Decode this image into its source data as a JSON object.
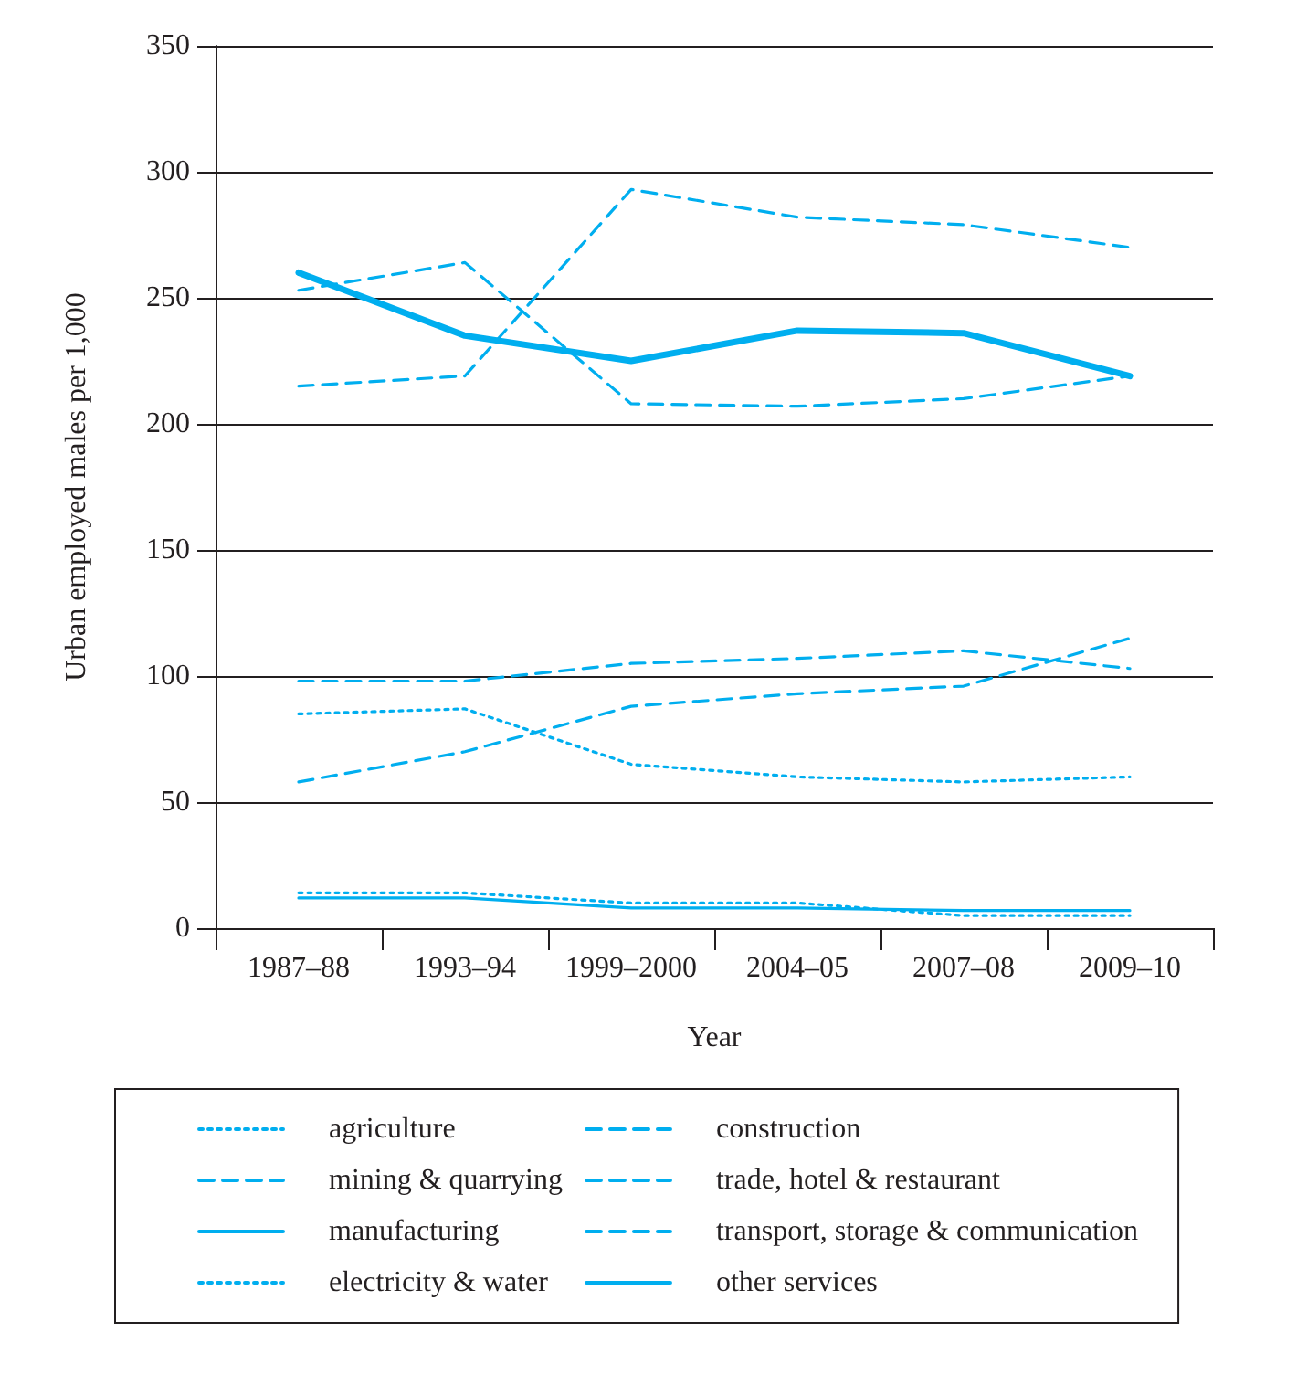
{
  "chart_data": {
    "type": "line",
    "xlabel": "Year",
    "ylabel": "Urban employed males per 1,000",
    "categories": [
      "1987–88",
      "1993–94",
      "1999–2000",
      "2004–05",
      "2007–08",
      "2009–10"
    ],
    "ylim": [
      0,
      350
    ],
    "yticks": [
      0,
      50,
      100,
      150,
      200,
      250,
      300,
      350
    ],
    "grid": "y",
    "legend": "bottom",
    "marker": "none",
    "series": [
      {
        "name": "agriculture",
        "color": "#00aeef",
        "line_style": "dotted",
        "values": [
          85,
          87,
          65,
          60,
          58,
          60
        ]
      },
      {
        "name": "mining & quarrying",
        "color": "#00aeef",
        "line_style": "dashed",
        "values": [
          253,
          264,
          208,
          207,
          210,
          219
        ]
      },
      {
        "name": "manufacturing",
        "color": "#00aeef",
        "line_style": "solid",
        "values": [
          260,
          235,
          225,
          237,
          236,
          219
        ]
      },
      {
        "name": "electricity & water",
        "color": "#00aeef",
        "line_style": "dotted",
        "values": [
          14,
          14,
          10,
          10,
          5,
          5
        ]
      },
      {
        "name": "construction",
        "color": "#00aeef",
        "line_style": "dashed",
        "values": [
          58,
          70,
          88,
          93,
          96,
          115
        ]
      },
      {
        "name": "trade, hotel & restaurant",
        "color": "#00aeef",
        "line_style": "dashed",
        "values": [
          215,
          219,
          293,
          282,
          279,
          270
        ]
      },
      {
        "name": "transport, storage & communication",
        "color": "#00aeef",
        "line_style": "dashed",
        "values": [
          98,
          98,
          105,
          107,
          110,
          103
        ]
      },
      {
        "name": "other services",
        "color": "#00aeef",
        "line_style": "solid",
        "values": [
          12,
          12,
          8,
          8,
          7,
          7
        ]
      }
    ]
  }
}
